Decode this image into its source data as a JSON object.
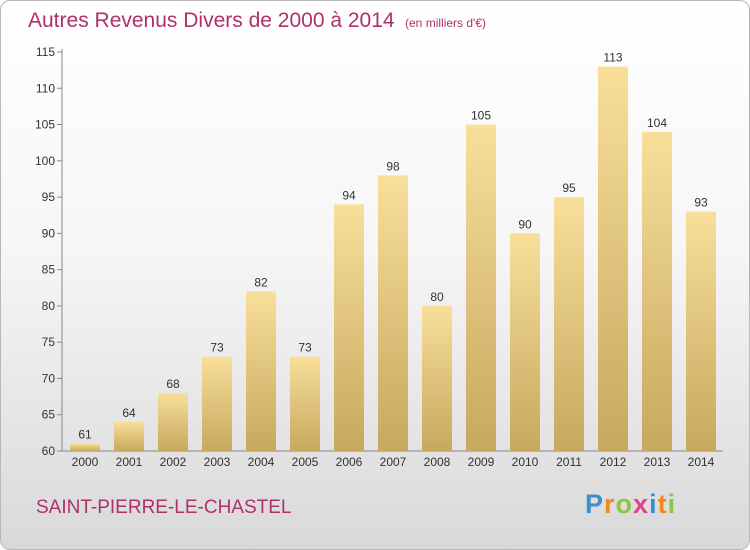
{
  "title": "Autres Revenus Divers de 2000 à 2014",
  "subtitle": "(en milliers d'€)",
  "commune": "SAINT-PIERRE-LE-CHASTEL",
  "brand": "Proxiti",
  "colors": {
    "title": "#b0306a",
    "bar_top": "#f8df9a",
    "bar_bottom": "#c7a85f",
    "brand_letters": [
      "#3b8fd0",
      "#f08a1e",
      "#8cc63f",
      "#e83e8c",
      "#3b8fd0",
      "#f08a1e",
      "#8cc63f"
    ]
  },
  "chart_data": {
    "type": "bar",
    "categories": [
      "2000",
      "2001",
      "2002",
      "2003",
      "2004",
      "2005",
      "2006",
      "2007",
      "2008",
      "2009",
      "2010",
      "2011",
      "2012",
      "2013",
      "2014"
    ],
    "values": [
      61,
      64,
      68,
      73,
      82,
      73,
      94,
      98,
      80,
      105,
      90,
      95,
      113,
      104,
      93
    ],
    "ylim": [
      60,
      115
    ],
    "yticks": [
      60,
      65,
      70,
      75,
      80,
      85,
      90,
      95,
      100,
      105,
      110,
      115
    ],
    "grid": false,
    "legend": "none",
    "data_labels": true
  }
}
